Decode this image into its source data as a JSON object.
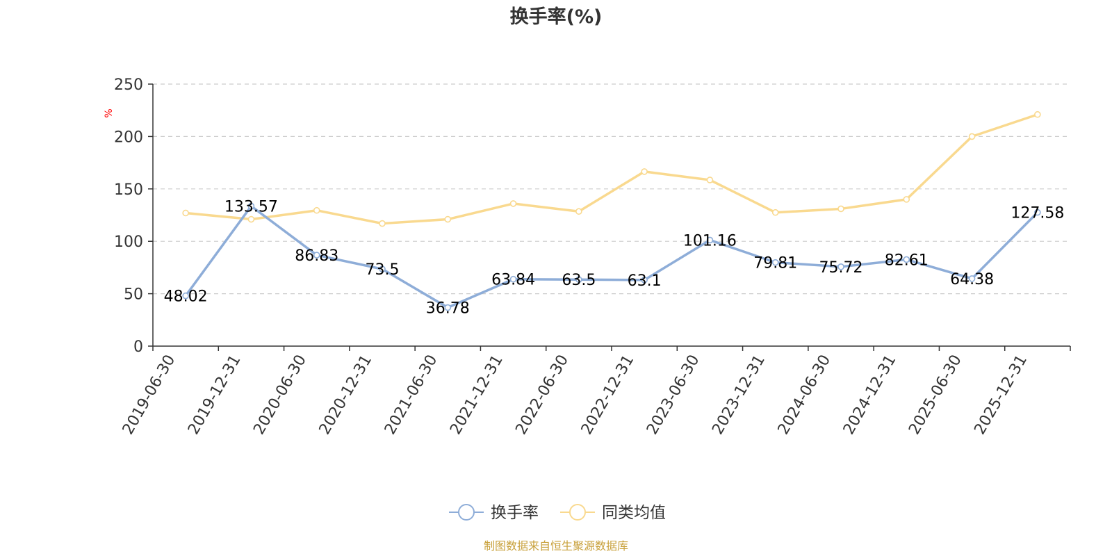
{
  "chart_data": {
    "type": "line",
    "title": "换手率(%)",
    "ylabel": "%",
    "xlabel": "",
    "ylim": [
      0,
      250
    ],
    "yticks": [
      0,
      50,
      100,
      150,
      200,
      250
    ],
    "grid": true,
    "legend_position": "bottom-center",
    "categories": [
      "2019-06-30",
      "2019-12-31",
      "2020-06-30",
      "2020-12-31",
      "2021-06-30",
      "2021-12-31",
      "2022-06-30",
      "2022-12-31",
      "2023-06-30",
      "2023-12-31",
      "2024-06-30",
      "2024-12-31",
      "2025-06-30",
      "2025-12-31"
    ],
    "series": [
      {
        "name": "换手率",
        "color": "#8eadd8",
        "show_labels": true,
        "labels": [
          "48.02",
          "133.57",
          "86.83",
          "73.5",
          "36.78",
          "63.84",
          "63.5",
          "63.1",
          "101.16",
          "79.81",
          "75.72",
          "82.61",
          "64.38",
          "127.58"
        ],
        "values": [
          48.02,
          133.57,
          86.83,
          73.5,
          36.78,
          63.84,
          63.5,
          63.1,
          101.16,
          79.81,
          75.72,
          82.61,
          64.38,
          127.58
        ]
      },
      {
        "name": "同类均值",
        "color": "#f9d98f",
        "show_labels": false,
        "values": [
          127,
          121,
          129.5,
          117,
          121,
          136,
          128.5,
          166.5,
          158.5,
          127.5,
          131,
          140,
          200,
          221
        ]
      }
    ],
    "source_note": "制图数据来自恒生聚源数据库"
  }
}
